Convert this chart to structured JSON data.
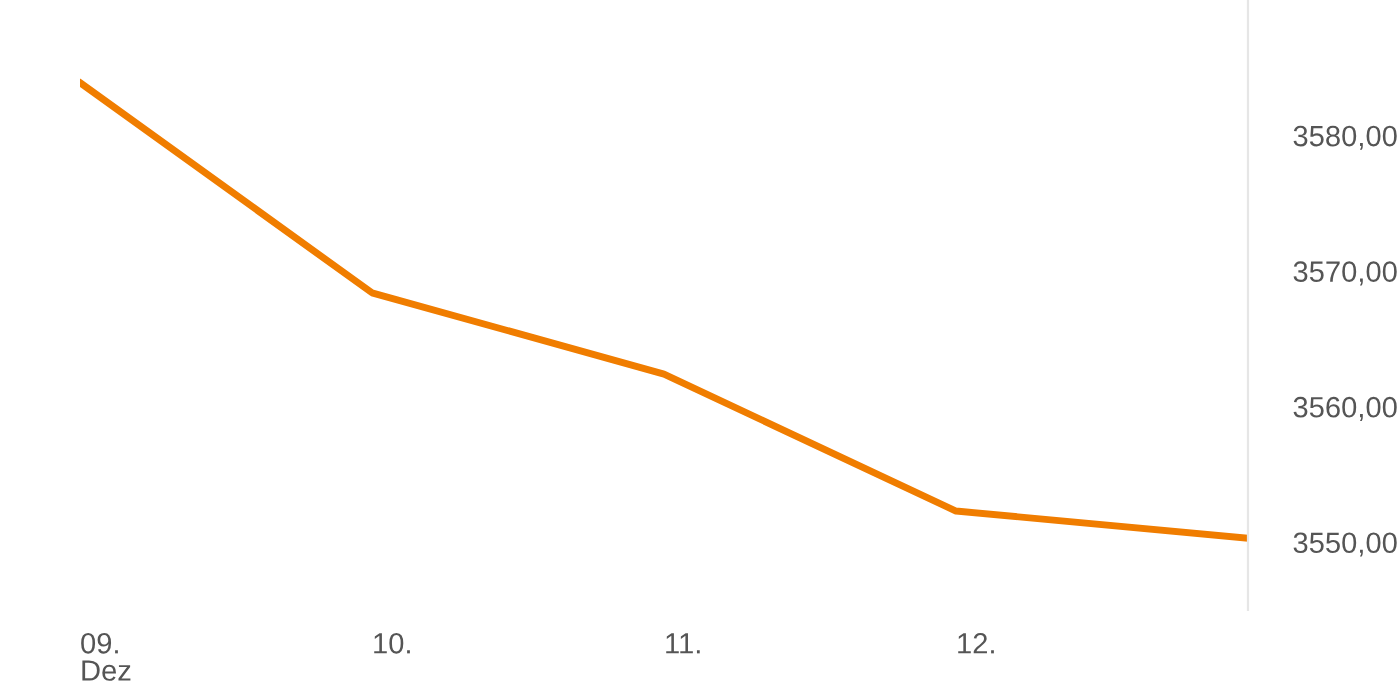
{
  "chart_data": {
    "type": "line",
    "categories": [
      "09.\nDez",
      "10.",
      "11.",
      "12.",
      null
    ],
    "series": [
      {
        "color": "#f07d00",
        "values": [
          3583.9,
          3568.4,
          3562.4,
          3552.3,
          3550.3
        ]
      }
    ],
    "ylim": [
      3545,
      3590
    ],
    "yticks": [
      {
        "value": 3550,
        "label": "3550,00"
      },
      {
        "value": 3560,
        "label": "3560,00"
      },
      {
        "value": 3570,
        "label": "3570,00"
      },
      {
        "value": 3580,
        "label": "3580,00"
      }
    ],
    "grid": false,
    "marker": "none",
    "line_style": "solid"
  }
}
